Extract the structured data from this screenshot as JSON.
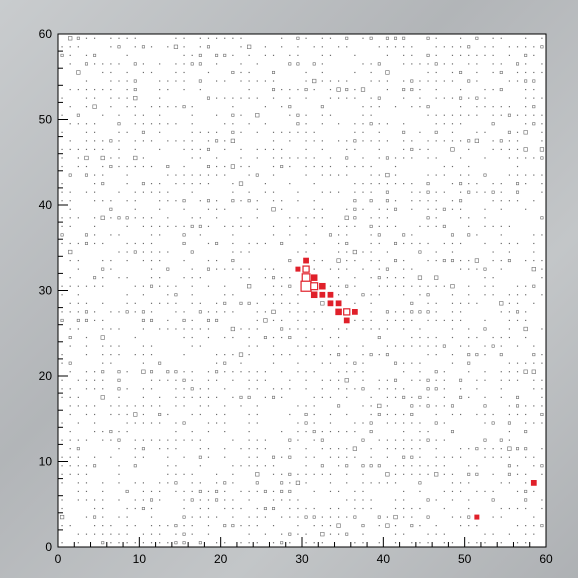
{
  "chart_data": {
    "type": "heatmap",
    "title": "",
    "xlabel": "",
    "ylabel": "",
    "xlim": [
      0,
      60
    ],
    "ylim": [
      0,
      60
    ],
    "x_ticks": [
      0,
      10,
      20,
      30,
      40,
      50,
      60
    ],
    "y_ticks": [
      0,
      10,
      20,
      30,
      40,
      50,
      60
    ],
    "x_tick_labels": [
      "0",
      "10",
      "20",
      "30",
      "40",
      "50",
      "60"
    ],
    "y_tick_labels": [
      "0",
      "10",
      "20",
      "30",
      "40",
      "50",
      "60"
    ],
    "grid": false,
    "bins": 60,
    "background_marker_color": "#6b6b6b",
    "hot_marker_color": "#e0202a",
    "hot_cells": [
      {
        "x": 30.5,
        "y": 33.5,
        "value": 2
      },
      {
        "x": 30.5,
        "y": 32.5,
        "value": 4
      },
      {
        "x": 31.5,
        "y": 31.5,
        "value": 3
      },
      {
        "x": 30.5,
        "y": 31.5,
        "value": 6
      },
      {
        "x": 30.5,
        "y": 30.5,
        "value": 9
      },
      {
        "x": 31.5,
        "y": 30.5,
        "value": 5
      },
      {
        "x": 32.5,
        "y": 30.5,
        "value": 3
      },
      {
        "x": 31.5,
        "y": 29.5,
        "value": 3
      },
      {
        "x": 32.5,
        "y": 29.5,
        "value": 2
      },
      {
        "x": 33.5,
        "y": 29.5,
        "value": 2
      },
      {
        "x": 33.5,
        "y": 28.5,
        "value": 2
      },
      {
        "x": 34.5,
        "y": 28.5,
        "value": 2
      },
      {
        "x": 34.5,
        "y": 27.5,
        "value": 3
      },
      {
        "x": 35.5,
        "y": 27.5,
        "value": 4
      },
      {
        "x": 36.5,
        "y": 27.5,
        "value": 2
      },
      {
        "x": 35.5,
        "y": 26.5,
        "value": 2
      },
      {
        "x": 29.5,
        "y": 32.5,
        "value": 1
      },
      {
        "x": 58.5,
        "y": 7.5,
        "value": 2
      },
      {
        "x": 51.5,
        "y": 3.5,
        "value": 1
      }
    ]
  }
}
